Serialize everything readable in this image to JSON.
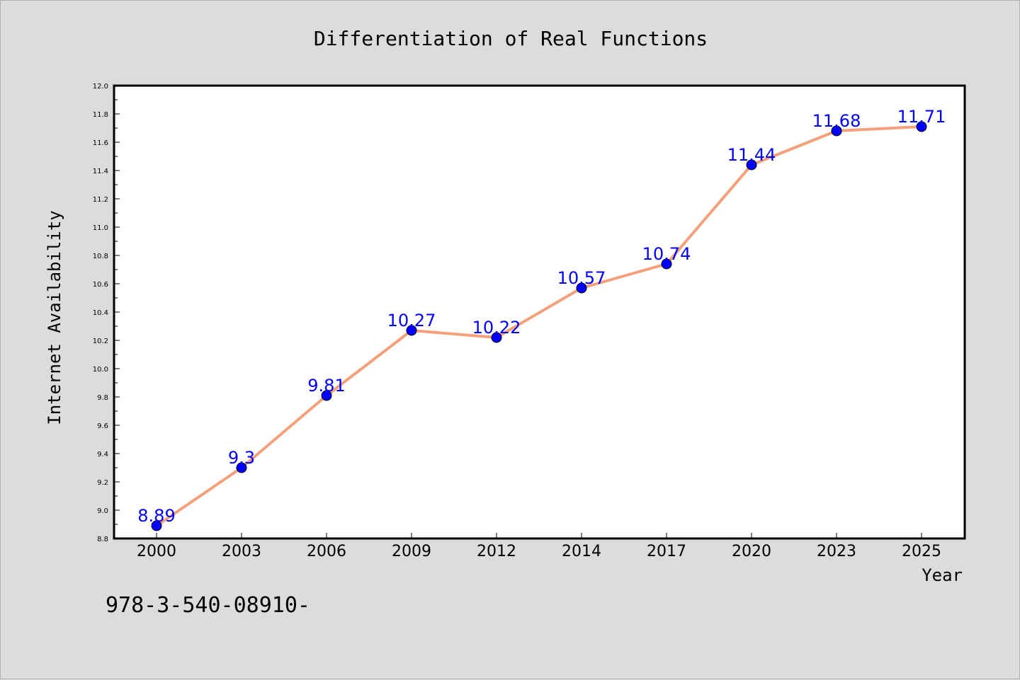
{
  "chart_data": {
    "type": "line",
    "title": "Differentiation of Real Functions",
    "xlabel": "Year",
    "ylabel": "Internet Availability",
    "categories": [
      "2000",
      "2003",
      "2006",
      "2009",
      "2012",
      "2014",
      "2017",
      "2020",
      "2023",
      "2025"
    ],
    "series": [
      {
        "values": [
          8.89,
          9.3,
          9.81,
          10.27,
          10.22,
          10.57,
          10.74,
          11.44,
          11.68,
          11.71
        ],
        "labels": [
          "8.89",
          "9.3",
          "9.81",
          "10.27",
          "10.22",
          "10.57",
          "10.74",
          "11.44",
          "11.68",
          "11.71"
        ],
        "line_color": "#f4a07a",
        "marker_color": "#0000ff"
      }
    ],
    "ylim": [
      8.8,
      12.0
    ],
    "yticks": [
      "8.8",
      "9.0",
      "9.2",
      "9.4",
      "9.6",
      "9.8",
      "10.0",
      "10.2",
      "10.4",
      "10.6",
      "10.8",
      "11.0",
      "11.2",
      "11.4",
      "11.6",
      "11.8",
      "12.0"
    ],
    "grid": false,
    "legend": "none",
    "colors": {
      "background": "#dcdcdc",
      "plot_background": "#ffffff",
      "data_label": "#0000ff"
    }
  },
  "footer": {
    "text": "978-3-540-08910-"
  }
}
